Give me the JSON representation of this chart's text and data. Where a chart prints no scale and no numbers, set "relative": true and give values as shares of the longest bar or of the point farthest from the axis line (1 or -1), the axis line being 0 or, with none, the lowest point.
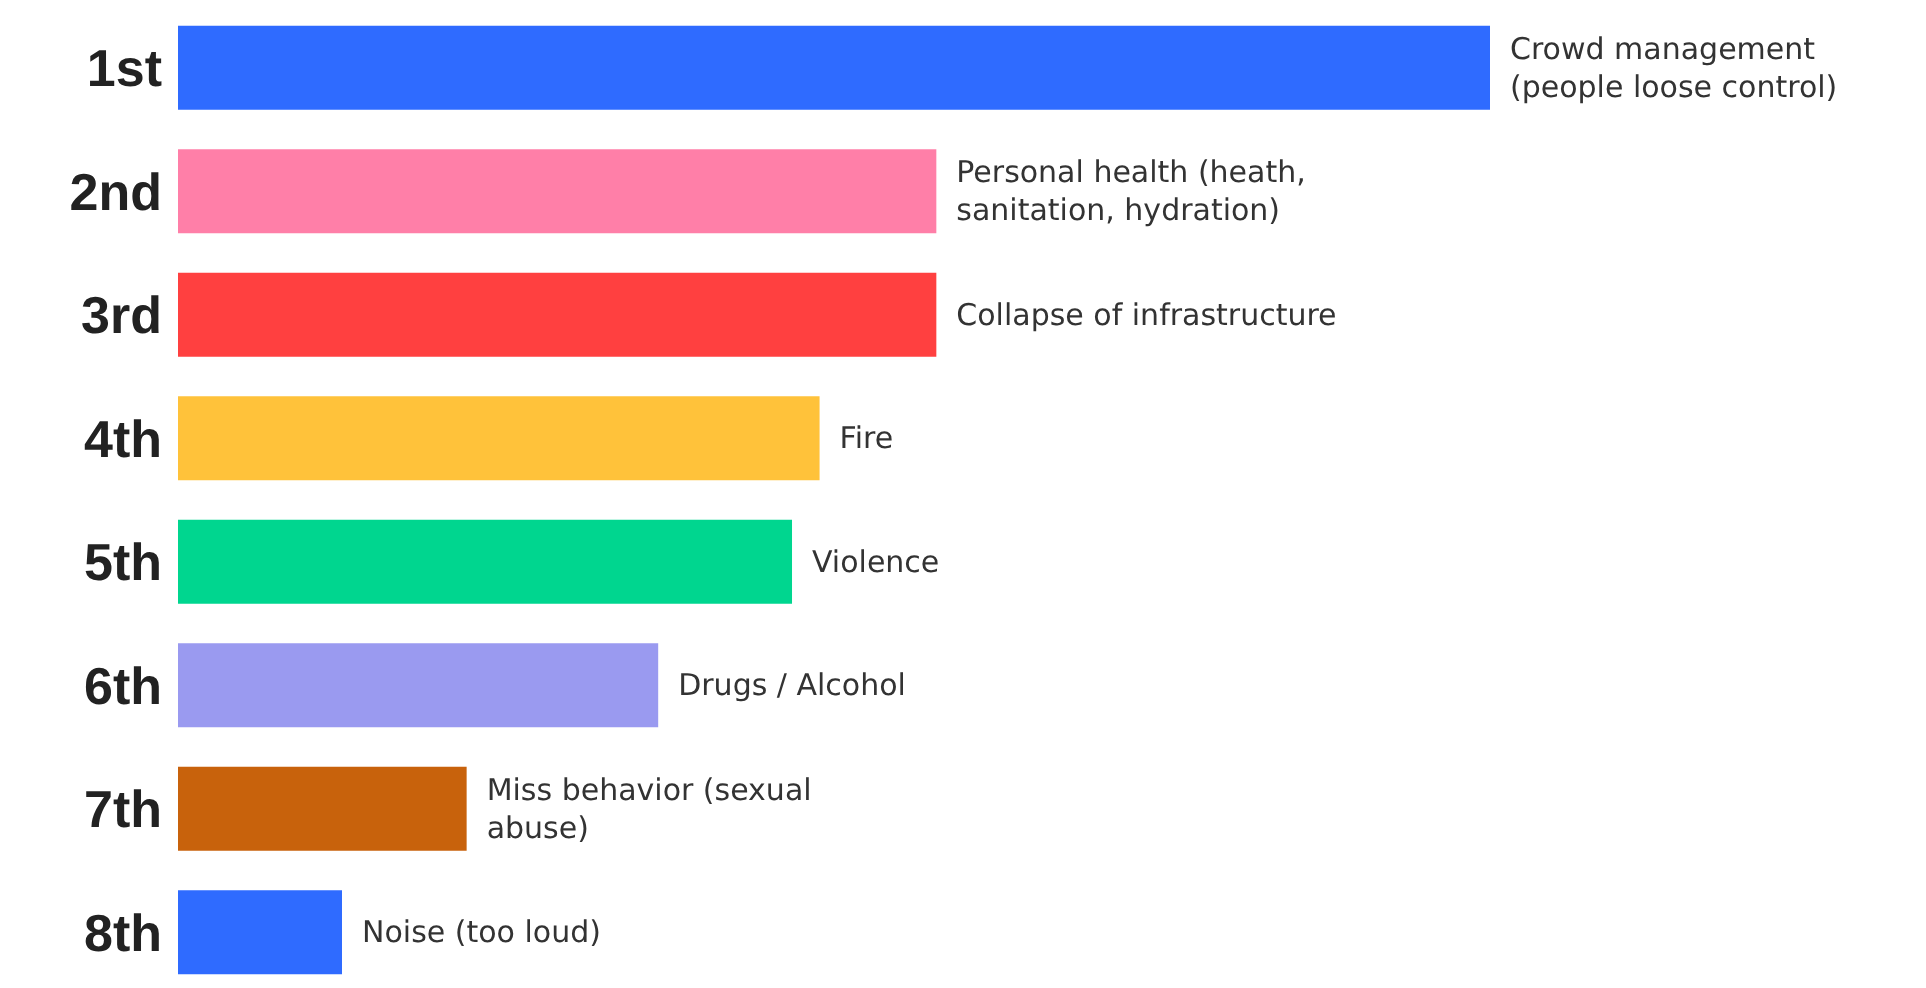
{
  "chart_data": {
    "type": "bar",
    "orientation": "horizontal",
    "relative": true,
    "categories": [
      "1st",
      "2nd",
      "3rd",
      "4th",
      "5th",
      "6th",
      "7th",
      "8th"
    ],
    "values": [
      1,
      0.578,
      0.578,
      0.489,
      0.468,
      0.366,
      0.22,
      0.125
    ],
    "colors": [
      "#2f6bff",
      "#ff7fa8",
      "#ff4040",
      "#ffc23a",
      "#00d68f",
      "#9a9af0",
      "#c8620c",
      "#2f6bff"
    ],
    "annotations": [
      {
        "text": "Crowd management (people loose control)",
        "x": 1,
        "y": "1st"
      },
      {
        "text": "Personal health (heath, sanitation, hydration)",
        "x": 0.578,
        "y": "2nd"
      },
      {
        "text": "Collapse of infrastructure",
        "x": 0.578,
        "y": "3rd"
      },
      {
        "text": "Fire",
        "x": 0.489,
        "y": "4th"
      },
      {
        "text": "Violence",
        "x": 0.468,
        "y": "5th"
      },
      {
        "text": "Drugs / Alcohol",
        "x": 0.366,
        "y": "6th"
      },
      {
        "text": "Miss behavior (sexual abuse)",
        "x": 0.22,
        "y": "7th"
      },
      {
        "text": "Noise (too loud)",
        "x": 0.125,
        "y": "8th"
      }
    ]
  }
}
